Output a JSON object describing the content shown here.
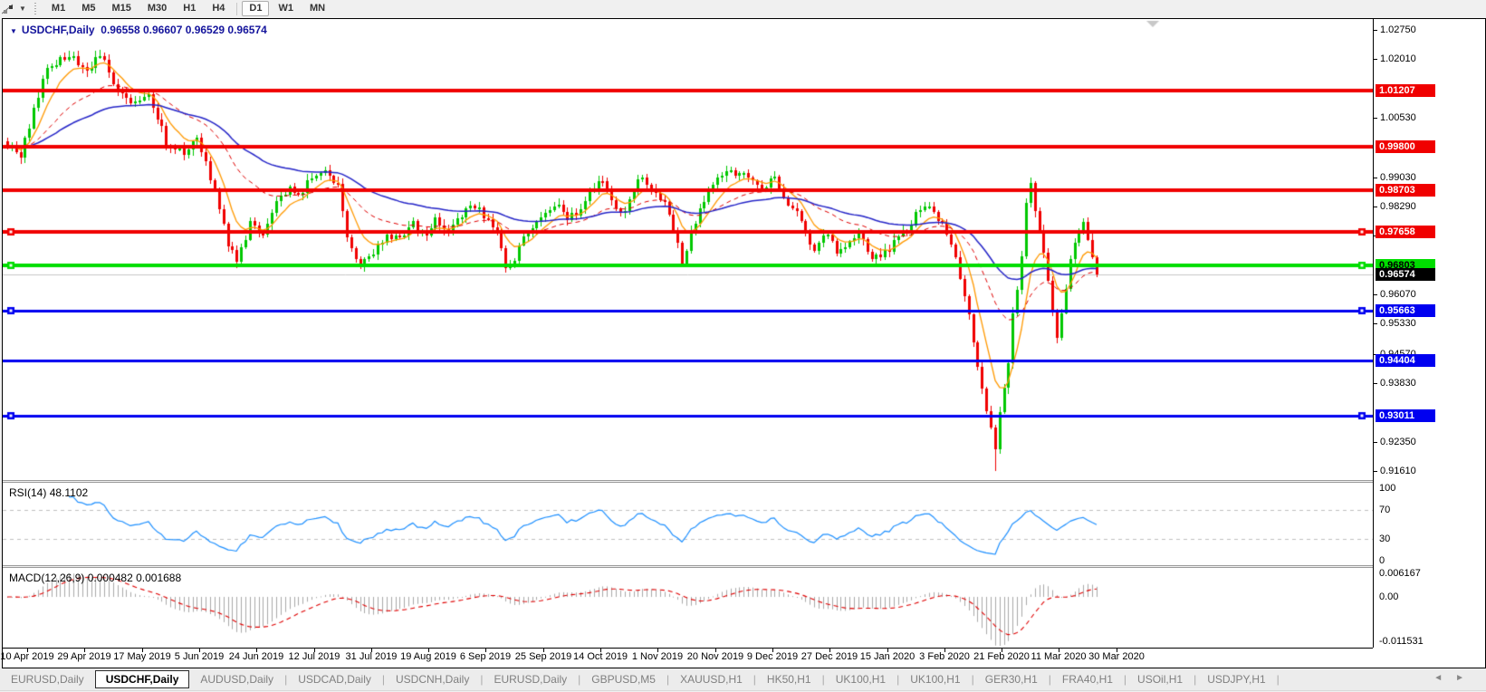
{
  "toolbar": {
    "tool_icon": "drawing-tool",
    "timeframes": [
      "M1",
      "M5",
      "M15",
      "M30",
      "H1",
      "H4",
      "D1",
      "W1",
      "MN"
    ],
    "selected_timeframe": "D1"
  },
  "chart": {
    "title": "USDCHF,Daily",
    "ohlc": "0.96558 0.96607 0.96529 0.96574",
    "colors": {
      "bull": "#00C800",
      "bear": "#F00000",
      "background": "#FFFFFF",
      "current_price_line": "#C8C8C8",
      "shift_marker": "#C8C8C8"
    },
    "y_ticks": [
      "1.02750",
      "1.02010",
      "1.00530",
      "0.99030",
      "0.98290",
      "0.97550",
      "0.96070",
      "0.95330",
      "0.94570",
      "0.93830",
      "0.92350",
      "0.91610"
    ],
    "h_lines": [
      {
        "value": "1.01207",
        "color": "#F00000",
        "width": 4,
        "selected": false,
        "badge_text": "#FFFFFF"
      },
      {
        "value": "0.99800",
        "color": "#F00000",
        "width": 4,
        "selected": false,
        "badge_text": "#FFFFFF"
      },
      {
        "value": "0.98703",
        "color": "#F00000",
        "width": 4,
        "selected": false,
        "badge_text": "#FFFFFF"
      },
      {
        "value": "0.97658",
        "color": "#F00000",
        "width": 4,
        "selected": true,
        "badge_text": "#FFFFFF"
      },
      {
        "value": "0.96803",
        "color": "#00DD00",
        "width": 4,
        "selected": true,
        "badge_text": "#000000"
      },
      {
        "value": "0.95663",
        "color": "#0000F0",
        "width": 3,
        "selected": true,
        "badge_text": "#FFFFFF"
      },
      {
        "value": "0.94404",
        "color": "#0000F0",
        "width": 3,
        "selected": false,
        "badge_text": "#FFFFFF"
      },
      {
        "value": "0.93011",
        "color": "#0000F0",
        "width": 3,
        "selected": true,
        "badge_text": "#FFFFFF"
      }
    ],
    "current_price": {
      "value": "0.96574",
      "badge_bg": "#000000",
      "badge_text": "#FFFFFF"
    },
    "moving_averages": [
      {
        "period": 8,
        "color": "#FF9900",
        "width": 1.3,
        "style": "solid"
      },
      {
        "period": 26,
        "color": "#E00000",
        "width": 1,
        "style": "dash"
      },
      {
        "period": 55,
        "color": "#2525C8",
        "width": 1.5,
        "style": "solid"
      }
    ],
    "price_path": [
      [
        0,
        0.999
      ],
      [
        3,
        0.9955
      ],
      [
        9,
        1.0185
      ],
      [
        14,
        1.021
      ],
      [
        18,
        1.0173
      ],
      [
        21,
        1.021
      ],
      [
        25,
        1.0125
      ],
      [
        29,
        1.0088
      ],
      [
        32,
        1.012
      ],
      [
        36,
        0.999
      ],
      [
        40,
        0.9966
      ],
      [
        43,
        1.0
      ],
      [
        46,
        0.9906
      ],
      [
        50,
        0.9736
      ],
      [
        52,
        0.9688
      ],
      [
        55,
        0.9785
      ],
      [
        58,
        0.9748
      ],
      [
        61,
        0.9833
      ],
      [
        64,
        0.988
      ],
      [
        66,
        0.9857
      ],
      [
        69,
        0.9906
      ],
      [
        72,
        0.993
      ],
      [
        75,
        0.988
      ],
      [
        77,
        0.976
      ],
      [
        80,
        0.9675
      ],
      [
        83,
        0.9712
      ],
      [
        86,
        0.976
      ],
      [
        89,
        0.9748
      ],
      [
        92,
        0.9785
      ],
      [
        95,
        0.9748
      ],
      [
        97,
        0.9797
      ],
      [
        100,
        0.976
      ],
      [
        102,
        0.9797
      ],
      [
        105,
        0.9833
      ],
      [
        108,
        0.9809
      ],
      [
        111,
        0.976
      ],
      [
        113,
        0.9675
      ],
      [
        115,
        0.97
      ],
      [
        117,
        0.9748
      ],
      [
        120,
        0.9797
      ],
      [
        122,
        0.9809
      ],
      [
        125,
        0.9833
      ],
      [
        127,
        0.9797
      ],
      [
        130,
        0.9821
      ],
      [
        132,
        0.987
      ],
      [
        135,
        0.9894
      ],
      [
        137,
        0.9845
      ],
      [
        140,
        0.9809
      ],
      [
        142,
        0.987
      ],
      [
        144,
        0.9906
      ],
      [
        146,
        0.988
      ],
      [
        149,
        0.9833
      ],
      [
        151,
        0.9772
      ],
      [
        153,
        0.9688
      ],
      [
        155,
        0.976
      ],
      [
        158,
        0.9845
      ],
      [
        161,
        0.9894
      ],
      [
        163,
        0.9918
      ],
      [
        165,
        0.9906
      ],
      [
        168,
        0.9906
      ],
      [
        171,
        0.987
      ],
      [
        174,
        0.9906
      ],
      [
        176,
        0.9845
      ],
      [
        179,
        0.9809
      ],
      [
        181,
        0.976
      ],
      [
        183,
        0.9724
      ],
      [
        186,
        0.976
      ],
      [
        188,
        0.9712
      ],
      [
        190,
        0.9736
      ],
      [
        193,
        0.976
      ],
      [
        196,
        0.97
      ],
      [
        199,
        0.9712
      ],
      [
        201,
        0.9736
      ],
      [
        204,
        0.9772
      ],
      [
        206,
        0.9809
      ],
      [
        208,
        0.9833
      ],
      [
        210,
        0.9809
      ],
      [
        212,
        0.9785
      ],
      [
        214,
        0.9736
      ],
      [
        216,
        0.9651
      ],
      [
        218,
        0.9554
      ],
      [
        220,
        0.9433
      ],
      [
        222,
        0.9311
      ],
      [
        224,
        0.9214
      ],
      [
        225,
        0.9311
      ],
      [
        227,
        0.9433
      ],
      [
        228,
        0.9554
      ],
      [
        230,
        0.97
      ],
      [
        231,
        0.9845
      ],
      [
        232,
        0.988
      ],
      [
        234,
        0.9772
      ],
      [
        236,
        0.9651
      ],
      [
        237,
        0.9554
      ],
      [
        238,
        0.9506
      ],
      [
        240,
        0.9627
      ],
      [
        241,
        0.97
      ],
      [
        243,
        0.9772
      ],
      [
        244,
        0.9785
      ],
      [
        245,
        0.9748
      ],
      [
        246,
        0.97
      ],
      [
        247,
        0.96574
      ]
    ],
    "wick_overrides": [
      {
        "index": 224,
        "low": 0.9161
      },
      {
        "index": 232,
        "high": 0.9903
      }
    ]
  },
  "rsi": {
    "title": "RSI(14)",
    "value": "48.1102",
    "period": 14,
    "axis": [
      "100",
      "70",
      "30",
      "0"
    ],
    "dashed_levels": [
      70,
      30
    ],
    "line_color": "#1E90FF",
    "level_color": "#C0C0C0"
  },
  "macd": {
    "title": "MACD(12,26,9)",
    "values": "0.000482 0.001688",
    "fast": 12,
    "slow": 26,
    "signal": 9,
    "axis": [
      "0.006167",
      "0.00",
      "-0.011531"
    ],
    "histogram_color": "#A9A9A9",
    "signal_color": "#E00000"
  },
  "dates": [
    "10 Apr 2019",
    "29 Apr 2019",
    "17 May 2019",
    "5 Jun 2019",
    "24 Jun 2019",
    "12 Jul 2019",
    "31 Jul 2019",
    "19 Aug 2019",
    "6 Sep 2019",
    "25 Sep 2019",
    "14 Oct 2019",
    "1 Nov 2019",
    "20 Nov 2019",
    "9 Dec 2019",
    "27 Dec 2019",
    "15 Jan 2020",
    "3 Feb 2020",
    "21 Feb 2020",
    "11 Mar 2020",
    "30 Mar 2020"
  ],
  "tabs": {
    "items": [
      "EURUSD,Daily",
      "USDCHF,Daily",
      "AUDUSD,Daily",
      "USDCAD,Daily",
      "USDCNH,Daily",
      "EURUSD,Daily",
      "GBPUSD,M5",
      "XAUUSD,H1",
      "HK50,H1",
      "UK100,H1",
      "UK100,H1",
      "GER30,H1",
      "FRA40,H1",
      "USOil,H1",
      "USDJPY,H1"
    ],
    "active_index": 1,
    "separator": "|",
    "arrow_left": "◄",
    "arrow_right": "►"
  }
}
